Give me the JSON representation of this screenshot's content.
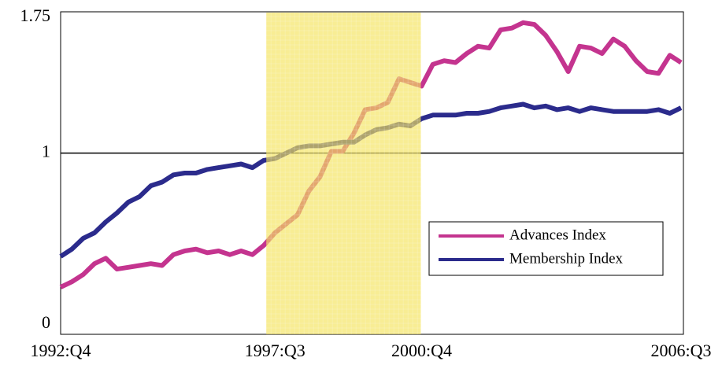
{
  "chart_data": {
    "type": "line",
    "categories": [
      "1992:Q4",
      null,
      null,
      null,
      null,
      null,
      null,
      null,
      null,
      null,
      null,
      null,
      null,
      null,
      null,
      null,
      null,
      null,
      null,
      "1997:Q3",
      null,
      null,
      null,
      null,
      null,
      null,
      null,
      null,
      null,
      null,
      null,
      null,
      "2000:Q4",
      null,
      null,
      null,
      null,
      null,
      null,
      null,
      null,
      null,
      null,
      null,
      null,
      null,
      null,
      null,
      null,
      null,
      null,
      null,
      null,
      null,
      null,
      "2006:Q3"
    ],
    "series": [
      {
        "name": "Advances Index",
        "color": "#c4348f",
        "values": [
          0.26,
          0.29,
          0.33,
          0.39,
          0.42,
          0.36,
          0.37,
          0.38,
          0.39,
          0.38,
          0.44,
          0.46,
          0.47,
          0.45,
          0.46,
          0.44,
          0.46,
          0.44,
          0.49,
          0.56,
          0.61,
          0.66,
          0.79,
          0.87,
          1.01,
          1.01,
          1.11,
          1.24,
          1.25,
          1.28,
          1.41,
          1.39,
          1.37,
          1.49,
          1.51,
          1.5,
          1.55,
          1.59,
          1.58,
          1.68,
          1.69,
          1.72,
          1.71,
          1.65,
          1.56,
          1.45,
          1.59,
          1.58,
          1.55,
          1.63,
          1.59,
          1.51,
          1.45,
          1.44,
          1.54,
          1.5
        ]
      },
      {
        "name": "Membership Index",
        "color": "#2b2b8c",
        "values": [
          0.43,
          0.47,
          0.53,
          0.56,
          0.62,
          0.67,
          0.73,
          0.76,
          0.82,
          0.84,
          0.88,
          0.89,
          0.89,
          0.91,
          0.92,
          0.93,
          0.94,
          0.92,
          0.96,
          0.97,
          1.0,
          1.03,
          1.04,
          1.04,
          1.05,
          1.06,
          1.06,
          1.1,
          1.13,
          1.14,
          1.16,
          1.15,
          1.19,
          1.21,
          1.21,
          1.21,
          1.22,
          1.22,
          1.23,
          1.25,
          1.26,
          1.27,
          1.25,
          1.26,
          1.24,
          1.25,
          1.23,
          1.25,
          1.24,
          1.23,
          1.23,
          1.23,
          1.23,
          1.24,
          1.22,
          1.25
        ]
      }
    ],
    "ylim": [
      0,
      1.78
    ],
    "yticks": [
      0,
      1,
      1.75
    ],
    "hline": 1,
    "highlight": {
      "start": "1997:Q3",
      "end": "2000:Q4",
      "color": "#f5e35a"
    },
    "legend": "lower right"
  }
}
